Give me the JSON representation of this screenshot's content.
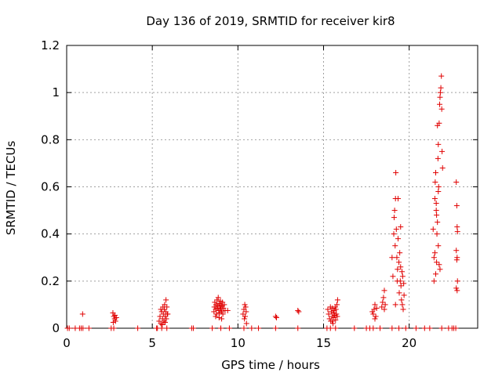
{
  "chart_data": {
    "type": "scatter",
    "title": "Day 136 of 2019, SRMTID for receiver kir8",
    "xlabel": "GPS time / hours",
    "ylabel": "SRMTID / TECUs",
    "xlim": [
      0,
      24
    ],
    "ylim": [
      0,
      1.2
    ],
    "xticks": [
      0,
      5,
      10,
      15,
      20
    ],
    "yticks": [
      0,
      0.2,
      0.4,
      0.6,
      0.8,
      1,
      1.2
    ],
    "ytick_labels": [
      "0",
      "0.2",
      "0.4",
      "0.6",
      "0.8",
      "1",
      "1.2"
    ],
    "grid": true,
    "marker": "+",
    "color": "#e00000",
    "series": [
      {
        "name": "SRMTID",
        "points": [
          [
            0.05,
            0
          ],
          [
            0.15,
            0
          ],
          [
            0.5,
            0
          ],
          [
            0.75,
            0
          ],
          [
            0.85,
            0
          ],
          [
            0.95,
            0
          ],
          [
            0.93,
            0.06
          ],
          [
            1.3,
            0
          ],
          [
            2.6,
            0
          ],
          [
            2.75,
            0
          ],
          [
            2.7,
            0.065
          ],
          [
            2.75,
            0.05
          ],
          [
            2.8,
            0.04
          ],
          [
            2.85,
            0.03
          ],
          [
            2.9,
            0.045
          ],
          [
            2.72,
            0.025
          ],
          [
            2.82,
            0.055
          ],
          [
            4.15,
            0
          ],
          [
            5.25,
            0
          ],
          [
            5.3,
            0
          ],
          [
            5.4,
            0.03
          ],
          [
            5.45,
            0.05
          ],
          [
            5.5,
            0.02
          ],
          [
            5.55,
            0.07
          ],
          [
            5.6,
            0.04
          ],
          [
            5.62,
            0.09
          ],
          [
            5.65,
            0.06
          ],
          [
            5.68,
            0.03
          ],
          [
            5.7,
            0.08
          ],
          [
            5.72,
            0.1
          ],
          [
            5.75,
            0.05
          ],
          [
            5.78,
            0.07
          ],
          [
            5.8,
            0.12
          ],
          [
            5.82,
            0.04
          ],
          [
            5.85,
            0.09
          ],
          [
            5.87,
            0.06
          ],
          [
            5.5,
            0.08
          ],
          [
            5.58,
            0.015
          ],
          [
            5.75,
            0.025
          ],
          [
            5.9,
            0.06
          ],
          [
            5.85,
            0.0
          ],
          [
            5.55,
            0.0
          ],
          [
            7.3,
            0
          ],
          [
            7.4,
            0
          ],
          [
            8.5,
            0
          ],
          [
            8.6,
            0.07
          ],
          [
            8.62,
            0.09
          ],
          [
            8.65,
            0.11
          ],
          [
            8.7,
            0.08
          ],
          [
            8.72,
            0.1
          ],
          [
            8.75,
            0.06
          ],
          [
            8.78,
            0.12
          ],
          [
            8.8,
            0.085
          ],
          [
            8.82,
            0.095
          ],
          [
            8.85,
            0.13
          ],
          [
            8.88,
            0.075
          ],
          [
            8.9,
            0.105
          ],
          [
            8.92,
            0.065
          ],
          [
            8.95,
            0.09
          ],
          [
            8.98,
            0.115
          ],
          [
            9.0,
            0.08
          ],
          [
            9.02,
            0.1
          ],
          [
            9.05,
            0.07
          ],
          [
            9.08,
            0.095
          ],
          [
            9.1,
            0.11
          ],
          [
            9.12,
            0.06
          ],
          [
            9.15,
            0.085
          ],
          [
            9.2,
            0.1
          ],
          [
            9.25,
            0.075
          ],
          [
            8.7,
            0.05
          ],
          [
            8.9,
            0.045
          ],
          [
            9.05,
            0.04
          ],
          [
            9.0,
            0.0
          ],
          [
            9.5,
            0
          ],
          [
            9.4,
            0.075
          ],
          [
            10.3,
            0.06
          ],
          [
            10.35,
            0.08
          ],
          [
            10.4,
            0.1
          ],
          [
            10.42,
            0.05
          ],
          [
            10.45,
            0.09
          ],
          [
            10.38,
            0.04
          ],
          [
            10.48,
            0.07
          ],
          [
            10.5,
            0.02
          ],
          [
            10.35,
            0.0
          ],
          [
            10.8,
            0
          ],
          [
            11.2,
            0
          ],
          [
            12.2,
            0.05
          ],
          [
            12.25,
            0.045
          ],
          [
            12.2,
            0
          ],
          [
            13.5,
            0.075
          ],
          [
            13.55,
            0.07
          ],
          [
            13.5,
            0
          ],
          [
            15.2,
            0
          ],
          [
            15.25,
            0.08
          ],
          [
            15.3,
            0.06
          ],
          [
            15.35,
            0.04
          ],
          [
            15.4,
            0.09
          ],
          [
            15.42,
            0.03
          ],
          [
            15.45,
            0.07
          ],
          [
            15.5,
            0.05
          ],
          [
            15.52,
            0.085
          ],
          [
            15.55,
            0.02
          ],
          [
            15.58,
            0.065
          ],
          [
            15.6,
            0.045
          ],
          [
            15.62,
            0.075
          ],
          [
            15.65,
            0.055
          ],
          [
            15.68,
            0.09
          ],
          [
            15.7,
            0.035
          ],
          [
            15.72,
            0.08
          ],
          [
            15.75,
            0.06
          ],
          [
            15.78,
            0.1
          ],
          [
            15.8,
            0.05
          ],
          [
            15.82,
            0.12
          ],
          [
            15.4,
            0.0
          ],
          [
            15.7,
            0.0
          ],
          [
            15.5,
            0.03
          ],
          [
            16.8,
            0
          ],
          [
            17.5,
            0
          ],
          [
            17.7,
            0
          ],
          [
            17.9,
            0
          ],
          [
            17.85,
            0.07
          ],
          [
            17.9,
            0.06
          ],
          [
            17.95,
            0.08
          ],
          [
            18.0,
            0.1
          ],
          [
            18.05,
            0.05
          ],
          [
            18.1,
            0.085
          ],
          [
            18.0,
            0.04
          ],
          [
            18.3,
            0
          ],
          [
            18.4,
            0.09
          ],
          [
            18.45,
            0.11
          ],
          [
            18.5,
            0.13
          ],
          [
            18.55,
            0.16
          ],
          [
            18.6,
            0.1
          ],
          [
            18.55,
            0.08
          ],
          [
            19.0,
            0.3
          ],
          [
            19.05,
            0.22
          ],
          [
            19.1,
            0.4
          ],
          [
            19.12,
            0.47
          ],
          [
            19.15,
            0.5
          ],
          [
            19.18,
            0.35
          ],
          [
            19.2,
            0.55
          ],
          [
            19.22,
            0.66
          ],
          [
            19.25,
            0.42
          ],
          [
            19.28,
            0.3
          ],
          [
            19.3,
            0.2
          ],
          [
            19.32,
            0.25
          ],
          [
            19.35,
            0.38
          ],
          [
            19.4,
            0.28
          ],
          [
            19.42,
            0.15
          ],
          [
            19.45,
            0.32
          ],
          [
            19.48,
            0.2
          ],
          [
            19.5,
            0.26
          ],
          [
            19.52,
            0.18
          ],
          [
            19.55,
            0.12
          ],
          [
            19.58,
            0.24
          ],
          [
            19.6,
            0.1
          ],
          [
            19.62,
            0.22
          ],
          [
            19.65,
            0.08
          ],
          [
            19.68,
            0.19
          ],
          [
            19.7,
            0.14
          ],
          [
            19.2,
            0.1
          ],
          [
            19.0,
            0.0
          ],
          [
            19.4,
            0.0
          ],
          [
            19.8,
            0.0
          ],
          [
            19.35,
            0.55
          ],
          [
            19.5,
            0.43
          ],
          [
            20.4,
            0
          ],
          [
            20.9,
            0
          ],
          [
            21.2,
            0
          ],
          [
            21.4,
            0.42
          ],
          [
            21.45,
            0.3
          ],
          [
            21.5,
            0.55
          ],
          [
            21.52,
            0.62
          ],
          [
            21.55,
            0.66
          ],
          [
            21.58,
            0.5
          ],
          [
            21.6,
            0.48
          ],
          [
            21.62,
            0.4
          ],
          [
            21.65,
            0.86
          ],
          [
            21.68,
            0.72
          ],
          [
            21.7,
            0.78
          ],
          [
            21.72,
            0.6
          ],
          [
            21.75,
            0.87
          ],
          [
            21.78,
            0.95
          ],
          [
            21.8,
            0.98
          ],
          [
            21.82,
            1.0
          ],
          [
            21.85,
            1.02
          ],
          [
            21.88,
            1.07
          ],
          [
            21.9,
            0.93
          ],
          [
            21.92,
            0.75
          ],
          [
            21.95,
            0.68
          ],
          [
            21.75,
            0.27
          ],
          [
            21.8,
            0.25
          ],
          [
            21.7,
            0.35
          ],
          [
            21.6,
            0.28
          ],
          [
            21.55,
            0.23
          ],
          [
            21.45,
            0.2
          ],
          [
            21.5,
            0.32
          ],
          [
            21.65,
            0.45
          ],
          [
            21.7,
            0.58
          ],
          [
            21.58,
            0.53
          ],
          [
            21.9,
            0.0
          ],
          [
            22.3,
            0
          ],
          [
            22.5,
            0
          ],
          [
            22.6,
            0
          ],
          [
            22.75,
            0.62
          ],
          [
            22.78,
            0.52
          ],
          [
            22.8,
            0.43
          ],
          [
            22.82,
            0.41
          ],
          [
            22.75,
            0.33
          ],
          [
            22.8,
            0.3
          ],
          [
            22.78,
            0.29
          ],
          [
            22.82,
            0.2
          ],
          [
            22.75,
            0.17
          ],
          [
            22.8,
            0.16
          ],
          [
            22.72,
            0.0
          ]
        ]
      }
    ]
  }
}
